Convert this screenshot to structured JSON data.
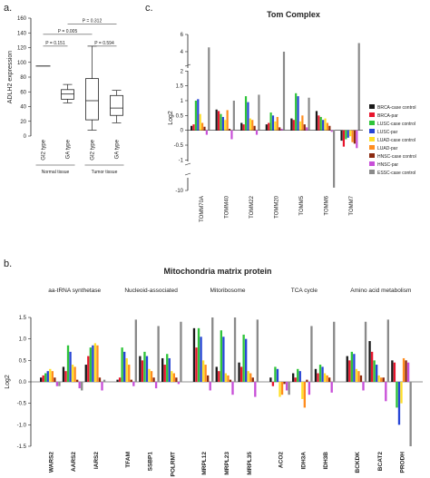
{
  "panel_labels": {
    "a": "a.",
    "b": "b.",
    "c": "c."
  },
  "colors": {
    "BRCA-case control": "#1a1a1a",
    "BRCA-par": "#e8152d",
    "LUSC-case control": "#2ec43a",
    "LUSC-par": "#2846d6",
    "LUAD-case control": "#ffe02a",
    "LUAD-par": "#ff8d1e",
    "HNSC-case control": "#8b2a10",
    "HNSC-par": "#c84fd8",
    "ESSC-case control": "#8a8a8a"
  },
  "chart_data": [
    {
      "id": "a",
      "type": "box",
      "ylabel": "ADLH2 expression",
      "categories": [
        "GI2 type",
        "GA type",
        "GI2 type",
        "GA type"
      ],
      "category_groups": [
        {
          "label": "Normal tissue",
          "categories": [
            0,
            1
          ]
        },
        {
          "label": "Tumor tissue",
          "categories": [
            2,
            3
          ]
        }
      ],
      "yticks": [
        0,
        20,
        40,
        60,
        80,
        100,
        120,
        140,
        160
      ],
      "ylim": [
        0,
        160
      ],
      "boxes": [
        {
          "min": 95,
          "q1": 95,
          "median": 95,
          "q3": 95,
          "max": 95
        },
        {
          "min": 45,
          "q1": 50,
          "median": 57,
          "q3": 63,
          "max": 70
        },
        {
          "min": 8,
          "q1": 22,
          "median": 48,
          "q3": 78,
          "max": 122
        },
        {
          "min": 18,
          "q1": 28,
          "median": 38,
          "q3": 55,
          "max": 62
        }
      ],
      "annotations": [
        {
          "text": "P = 0.312",
          "from": 1,
          "to": 3,
          "y": 152
        },
        {
          "text": "P = 0.005",
          "from": 0,
          "to": 2,
          "y": 138
        },
        {
          "text": "P = 0.151",
          "from": 0,
          "to": 1,
          "y": 122
        },
        {
          "text": "P = 0.594",
          "from": 2,
          "to": 3,
          "y": 122
        }
      ]
    },
    {
      "id": "c",
      "type": "bar",
      "title": "Tom Complex",
      "ylabel": "Log2",
      "categories": [
        "TOMM70A",
        "TOMM40",
        "TOMM22",
        "TOMM20",
        "TOMM5",
        "TOMM6",
        "TOMM7"
      ],
      "yticks": [
        -10,
        -1,
        -0.5,
        0,
        0.5,
        1,
        1.5,
        2,
        4,
        6
      ],
      "axis_breaks": [
        2.1,
        -1.05
      ],
      "series": [
        {
          "name": "BRCA-case control",
          "values": [
            0.15,
            0.7,
            0.25,
            0.2,
            0.4,
            0.65,
            -0.35
          ]
        },
        {
          "name": "BRCA-par",
          "values": [
            0.2,
            0.65,
            0.2,
            0.25,
            0.35,
            0.5,
            -0.55
          ]
        },
        {
          "name": "LUSC-case control",
          "values": [
            1.0,
            0.55,
            1.15,
            0.6,
            1.25,
            0.45,
            -0.3
          ]
        },
        {
          "name": "LUSC-par",
          "values": [
            1.05,
            0.45,
            0.95,
            0.5,
            1.15,
            0.35,
            -0.25
          ]
        },
        {
          "name": "LUAD-case control",
          "values": [
            0.55,
            0.35,
            0.4,
            0.3,
            0.3,
            0.4,
            -0.2
          ]
        },
        {
          "name": "LUAD-par",
          "values": [
            0.25,
            0.68,
            0.35,
            0.45,
            0.5,
            0.25,
            -0.4
          ]
        },
        {
          "name": "HNSC-case control",
          "values": [
            0.12,
            0.05,
            0.15,
            0.1,
            0.2,
            0.15,
            -0.45
          ]
        },
        {
          "name": "HNSC-par",
          "values": [
            -0.15,
            -0.3,
            -0.15,
            0.05,
            0.1,
            -0.05,
            -0.6
          ]
        },
        {
          "name": "ESSC-case control",
          "values": [
            4.5,
            1.0,
            1.2,
            4.0,
            1.1,
            -8.0,
            5.0
          ]
        }
      ],
      "legend_position": "right"
    },
    {
      "id": "b",
      "type": "bar",
      "title": "Mitochondria matrix protein",
      "ylabel": "Log2",
      "ylim": [
        -1.5,
        1.5
      ],
      "yticks": [
        -1.5,
        -1.0,
        -0.5,
        0.0,
        0.5,
        1.0,
        1.5
      ],
      "groups": [
        {
          "label": "aa-tRNA synthetase",
          "categories": [
            "WARS2",
            "AARS2",
            "IARS2"
          ]
        },
        {
          "label": "Nucleoid-associated",
          "categories": [
            "TFAM",
            "SSBP1",
            "POLRMT"
          ]
        },
        {
          "label": "Mitoribosome",
          "categories": [
            "MRPL12",
            "MRPL23",
            "MRPL35"
          ]
        },
        {
          "label": "TCA cycle",
          "categories": [
            "ACO2",
            "IDH3A",
            "IDH3B"
          ]
        },
        {
          "label": "Amino acid metabolism",
          "categories": [
            "BCKDK",
            "BCAT2",
            "PRODH"
          ]
        }
      ],
      "series": [
        {
          "name": "BRCA-case control",
          "values": [
            0.1,
            0.35,
            0.4,
            0.05,
            0.6,
            0.55,
            1.25,
            0.35,
            0.45,
            0.1,
            0.2,
            0.3,
            0.6,
            0.95,
            0.5
          ]
        },
        {
          "name": "BRCA-par",
          "values": [
            0.15,
            0.25,
            0.6,
            0.1,
            0.5,
            0.4,
            0.8,
            0.25,
            0.35,
            -0.1,
            0.1,
            0.2,
            0.5,
            0.7,
            0.45
          ]
        },
        {
          "name": "LUSC-case control",
          "values": [
            0.2,
            0.85,
            0.8,
            0.8,
            0.7,
            0.65,
            1.25,
            1.2,
            1.1,
            0.35,
            0.3,
            0.4,
            0.7,
            0.5,
            -0.6
          ]
        },
        {
          "name": "LUSC-par",
          "values": [
            0.25,
            0.7,
            0.85,
            0.7,
            0.6,
            0.55,
            1.05,
            1.05,
            1.0,
            0.3,
            0.25,
            0.35,
            0.65,
            0.4,
            -1.0
          ]
        },
        {
          "name": "LUAD-case control",
          "values": [
            0.3,
            0.4,
            0.9,
            0.55,
            0.3,
            0.25,
            0.5,
            0.2,
            0.25,
            -0.35,
            -0.4,
            0.2,
            0.3,
            0.15,
            -0.5
          ]
        },
        {
          "name": "LUAD-par",
          "values": [
            0.25,
            0.35,
            0.85,
            0.4,
            0.25,
            0.2,
            0.4,
            0.15,
            0.2,
            -0.3,
            -0.6,
            0.15,
            0.25,
            0.1,
            0.55
          ]
        },
        {
          "name": "HNSC-case control",
          "values": [
            0.1,
            0.05,
            0.1,
            0.05,
            0.1,
            0.1,
            0.15,
            0.05,
            0.1,
            -0.05,
            0.05,
            0.1,
            0.15,
            0.1,
            0.5
          ]
        },
        {
          "name": "HNSC-par",
          "values": [
            -0.1,
            -0.15,
            -0.2,
            -0.1,
            -0.15,
            -0.05,
            -0.2,
            -0.3,
            -0.35,
            -0.2,
            -0.3,
            -0.25,
            -0.2,
            -0.45,
            0.45
          ]
        },
        {
          "name": "ESSC-case control",
          "values": [
            -0.1,
            -0.2,
            0.05,
            1.45,
            1.3,
            1.4,
            1.5,
            1.5,
            1.45,
            -0.3,
            1.3,
            1.4,
            1.4,
            1.45,
            -1.5
          ]
        }
      ],
      "legend_position": "none"
    }
  ]
}
